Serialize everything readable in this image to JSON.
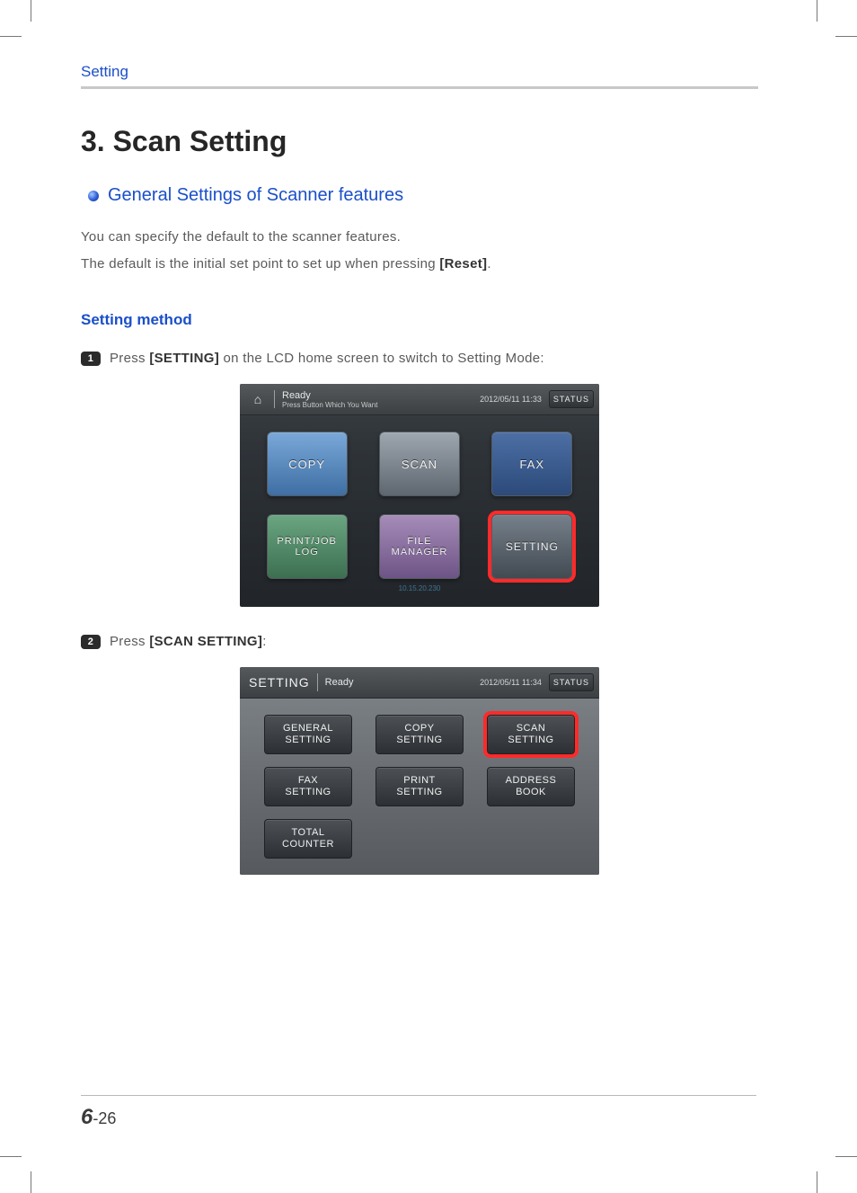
{
  "header": {
    "breadcrumb": "Setting"
  },
  "title": "3. Scan Setting",
  "section1": {
    "heading": "General Settings of Scanner features",
    "para1_pre": "You can specify the default to the scanner features.",
    "para2_pre": "The default is the initial set point to set up when pressing ",
    "para2_bold": "[Reset]",
    "para2_post": "."
  },
  "section2": {
    "heading": "Setting method",
    "step1": {
      "num": "1",
      "pre": "Press ",
      "bold": "[SETTING]",
      "post": " on the LCD home screen to switch to Setting Mode:"
    },
    "step2": {
      "num": "2",
      "pre": "Press ",
      "bold": "[SCAN SETTING]",
      "post": ":"
    }
  },
  "lcd_home": {
    "status_line1": "Ready",
    "status_line2": "Press Button Which You Want",
    "datetime": "2012/05/11 11:33",
    "status_btn": "STATUS",
    "tiles": {
      "copy": "COPY",
      "scan": "SCAN",
      "fax": "FAX",
      "print": "PRINT/JOB\nLOG",
      "file": "FILE\nMANAGER",
      "setting": "SETTING"
    },
    "ip": "10.15.20.230",
    "highlight": "setting",
    "colors": {
      "bg_top": "#3b4045",
      "bg_bottom": "#212529",
      "highlight": "#ff2a2a"
    }
  },
  "lcd_settings": {
    "title": "SETTING",
    "status_line1": "Ready",
    "datetime": "2012/05/11 11:34",
    "status_btn": "STATUS",
    "tiles": [
      "GENERAL\nSETTING",
      "COPY\nSETTING",
      "SCAN\nSETTING",
      "FAX\nSETTING",
      "PRINT\nSETTING",
      "ADDRESS\nBOOK",
      "TOTAL\nCOUNTER"
    ],
    "highlight_index": 2,
    "colors": {
      "body_top": "#7a7f84",
      "body_bottom": "#56595d",
      "tile_top": "#4d5155",
      "tile_bottom": "#2c2f33",
      "highlight": "#ff2a2a"
    }
  },
  "footer": {
    "chapter": "6",
    "page": "-26"
  },
  "palette": {
    "heading_blue": "#1a4fc9",
    "rule_grey": "#c8c8c8",
    "text_grey": "#5a5a5a",
    "text_dark": "#333333"
  }
}
